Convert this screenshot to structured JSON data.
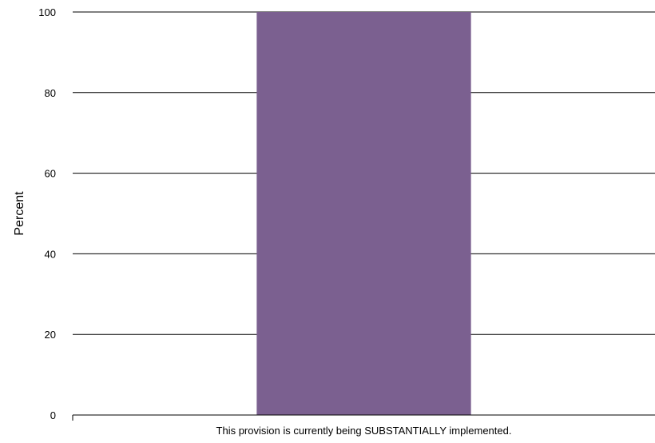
{
  "chart_data": {
    "type": "bar",
    "categories": [
      "This provision is currently being SUBSTANTIALLY implemented."
    ],
    "values": [
      100
    ],
    "title": "",
    "xlabel": "",
    "ylabel": "Percent",
    "ylim": [
      0,
      100
    ],
    "yticks": [
      0,
      20,
      40,
      60,
      80,
      100
    ],
    "grid": true,
    "bar_color": "#7b6090"
  }
}
